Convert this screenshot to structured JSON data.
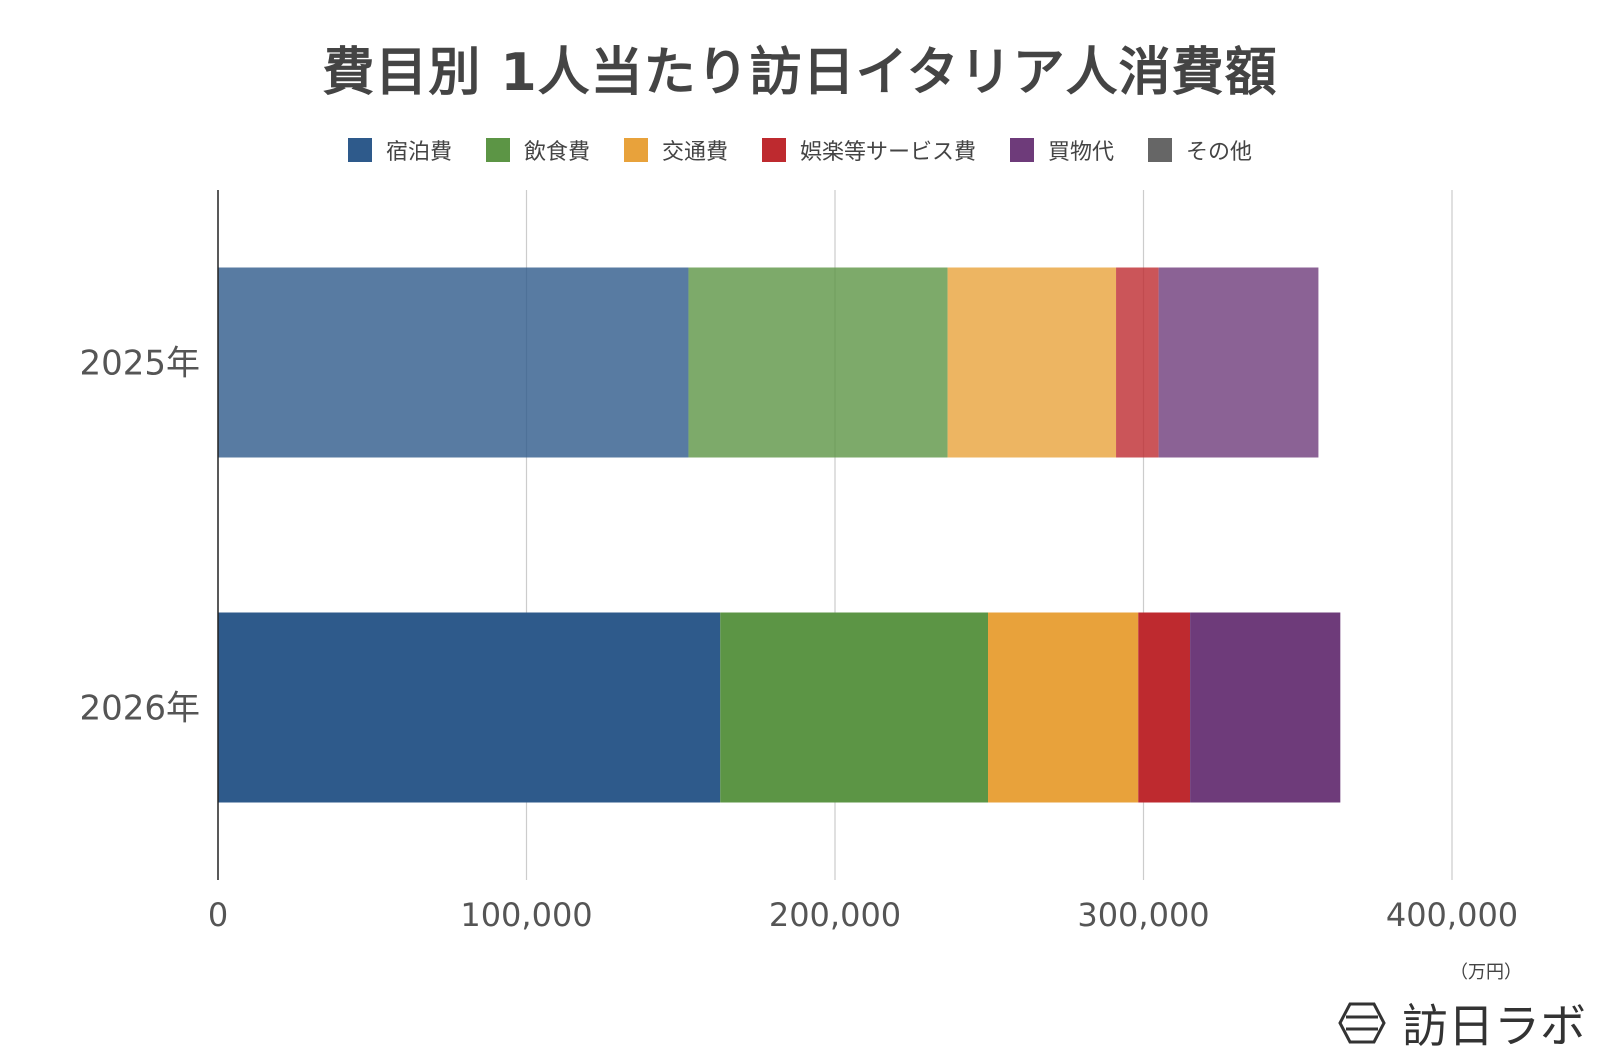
{
  "chart_data": {
    "type": "bar",
    "orientation": "horizontal",
    "stacked": true,
    "title": "費目別 1人当たり訪日イタリア人消費額",
    "categories": [
      "2025年",
      "2026年"
    ],
    "series": [
      {
        "name": "宿泊費",
        "color": "#2e5a8b",
        "values": [
          152500,
          162800
        ]
      },
      {
        "name": "飲食費",
        "color": "#5c9545",
        "values": [
          84000,
          86800
        ]
      },
      {
        "name": "交通費",
        "color": "#e8a23b",
        "values": [
          54600,
          48700
        ]
      },
      {
        "name": "娯楽等サービス費",
        "color": "#be2a2f",
        "values": [
          13800,
          16800
        ]
      },
      {
        "name": "買物代",
        "color": "#6e3b7a",
        "values": [
          51800,
          48700
        ]
      },
      {
        "name": "その他",
        "color": "#666666",
        "values": [
          0,
          0
        ]
      }
    ],
    "category_opacity": [
      0.8,
      1
    ],
    "xlim": [
      0,
      400000
    ],
    "xticks": [
      "0",
      "100,000",
      "200,000",
      "300,000",
      "400,000"
    ],
    "xtick_values": [
      0,
      100000,
      200000,
      300000,
      400000
    ],
    "xunit": "（万円）",
    "grid": "vertical",
    "legend_position": "top"
  },
  "brand": {
    "name": "訪日ラボ",
    "icon": "hexagon-logo-icon"
  }
}
